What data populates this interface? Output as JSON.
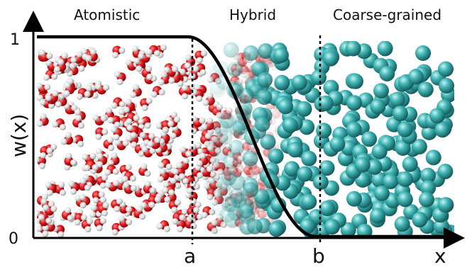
{
  "regions": {
    "atomistic": "Atomistic",
    "hybrid": "Hybrid",
    "coarse_grained": "Coarse-grained"
  },
  "axes": {
    "y_label": "w(x)",
    "y_top": "1",
    "y_bottom": "0",
    "x_label": "x",
    "boundary_a": "a",
    "boundary_b": "b"
  },
  "colors": {
    "oxygen": "#d0161a",
    "hydrogen": "#e8e8e8",
    "cg_bead": "#3fb3b3",
    "curve": "#000000"
  }
}
